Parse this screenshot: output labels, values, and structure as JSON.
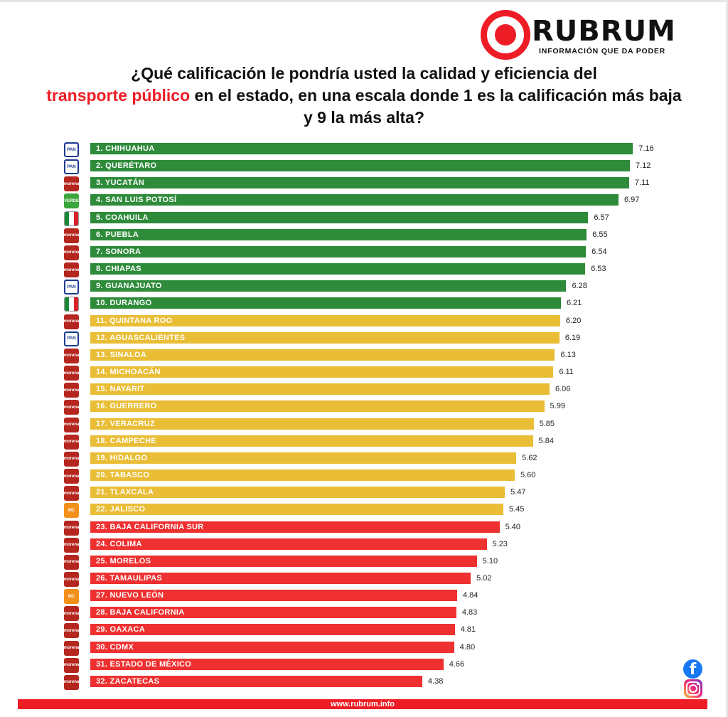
{
  "logo": {
    "brand": "RUBRUM",
    "tagline": "INFORMACIÓN QUE DA PODER"
  },
  "title": {
    "part1": "¿Qué calificación le pondría usted la calidad y eficiencia del",
    "highlight": "transporte público",
    "part2": " en el estado, en una escala donde 1 es la calificación más baja y 9 la más alta?"
  },
  "colors": {
    "green": "#2e8b3a",
    "yellow": "#e9bd35",
    "red": "#ee3030",
    "brand_red": "#ee1c25"
  },
  "party_labels": {
    "morena": "morena",
    "pan": "PAN",
    "pri": "PRI",
    "verde": "VERDE",
    "mc": "MC"
  },
  "chart_data": {
    "type": "bar",
    "orientation": "horizontal",
    "xlim": [
      0,
      9
    ],
    "grid": false,
    "categories": [
      "1. CHIHUAHUA",
      "2. QUERÉTARO",
      "3. YUCATÁN",
      "4. SAN LUIS POTOSÍ",
      "5. COAHUILA",
      "6. PUEBLA",
      "7. SONORA",
      "8. CHIAPAS",
      "9. GUANAJUATO",
      "10. DURANGO",
      "11. QUINTANA ROO",
      "12. AGUASCALIENTES",
      "13. SINALOA",
      "14. MICHOACÁN",
      "15. NAYARIT",
      "16. GUERRERO",
      "17. VERACRUZ",
      "18. CAMPECHE",
      "19. HIDALGO",
      "20. TABASCO",
      "21. TLAXCALA",
      "22. JALISCO",
      "23. BAJA CALIFORNIA SUR",
      "24. COLIMA",
      "25. MORELOS",
      "26. TAMAULIPAS",
      "27. NUEVO LEÓN",
      "28. BAJA CALIFORNIA",
      "29. OAXACA",
      "30. CDMX",
      "31. ESTADO DE MÉXICO",
      "32. ZACATECAS"
    ],
    "values": [
      7.16,
      7.12,
      7.11,
      6.97,
      6.57,
      6.55,
      6.54,
      6.53,
      6.28,
      6.21,
      6.2,
      6.19,
      6.13,
      6.11,
      6.06,
      5.99,
      5.85,
      5.84,
      5.62,
      5.6,
      5.47,
      5.45,
      5.4,
      5.23,
      5.1,
      5.02,
      4.84,
      4.83,
      4.81,
      4.8,
      4.66,
      4.38
    ],
    "value_labels": [
      "7.16",
      "7.12",
      "7.11",
      "6.97",
      "6.57",
      "6.55",
      "6.54",
      "6.53",
      "6.28",
      "6.21",
      "6.20",
      "6.19",
      "6.13",
      "6.11",
      "6.06",
      "5.99",
      "5.85",
      "5.84",
      "5.62",
      "5.60",
      "5.47",
      "5.45",
      "5.40",
      "5.23",
      "5.10",
      "5.02",
      "4.84",
      "4.83",
      "4.81",
      "4.80",
      "4.66",
      "4.38"
    ],
    "bar_colors": [
      "green",
      "green",
      "green",
      "green",
      "green",
      "green",
      "green",
      "green",
      "green",
      "green",
      "yellow",
      "yellow",
      "yellow",
      "yellow",
      "yellow",
      "yellow",
      "yellow",
      "yellow",
      "yellow",
      "yellow",
      "yellow",
      "yellow",
      "red",
      "red",
      "red",
      "red",
      "red",
      "red",
      "red",
      "red",
      "red",
      "red"
    ],
    "parties": [
      "pan",
      "pan",
      "morena",
      "verde",
      "pri",
      "morena",
      "morena",
      "morena",
      "pan",
      "pri",
      "morena",
      "pan",
      "morena",
      "morena",
      "morena",
      "morena",
      "morena",
      "morena",
      "morena",
      "morena",
      "morena",
      "mc",
      "morena",
      "morena",
      "morena",
      "morena",
      "mc",
      "morena",
      "morena",
      "morena",
      "morena",
      "morena"
    ]
  },
  "social": {
    "facebook_icon": "facebook-icon",
    "instagram_icon": "instagram-icon",
    "facebook_glyph": "f"
  },
  "footer": {
    "url": "www.rubrum.info"
  }
}
